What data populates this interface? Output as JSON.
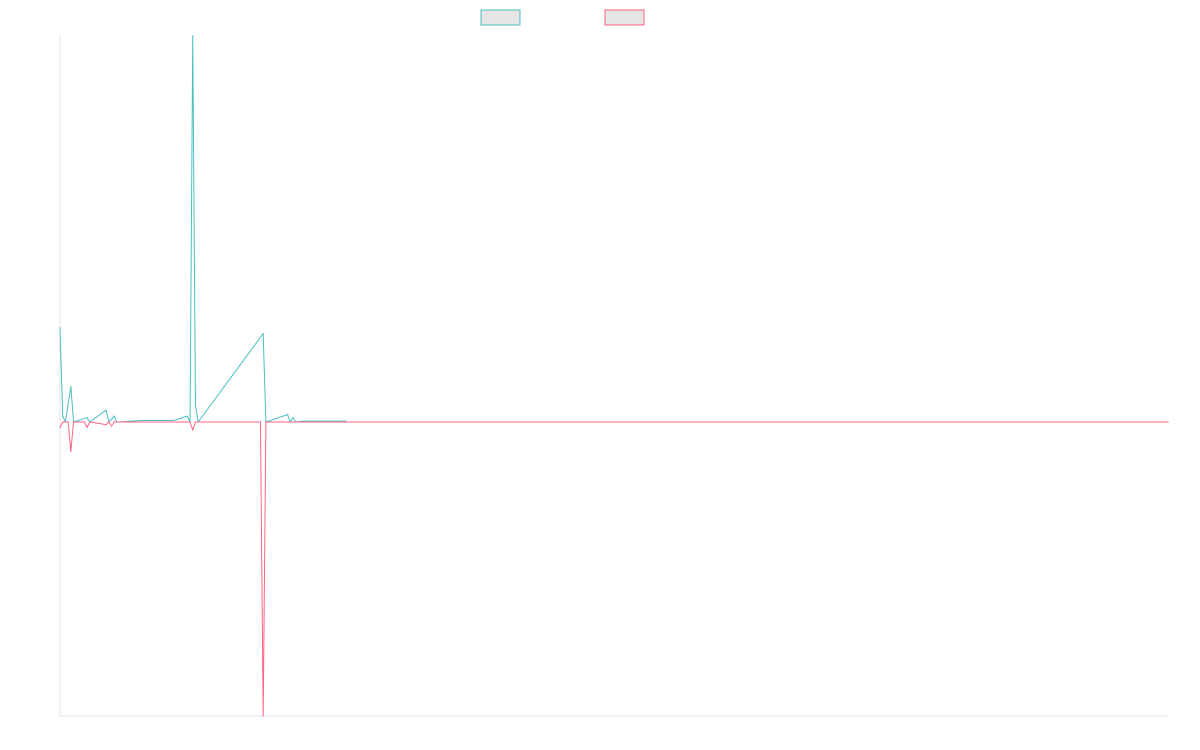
{
  "chart_data": {
    "type": "line",
    "title": "",
    "xlabel": "",
    "ylabel": "",
    "grid": false,
    "legend_position": "top-center",
    "x_count": 410,
    "ylim": [
      -100,
      100
    ],
    "series": [
      {
        "color": "#4bc0c0",
        "fill": "#e6e6e6",
        "points": [
          [
            0,
            32
          ],
          [
            1,
            2
          ],
          [
            2,
            0
          ],
          [
            4,
            12
          ],
          [
            5,
            0
          ],
          [
            10,
            1.5
          ],
          [
            11,
            0
          ],
          [
            17,
            4
          ],
          [
            18,
            0
          ],
          [
            20,
            2
          ],
          [
            21,
            0
          ],
          [
            30,
            0.5
          ],
          [
            35,
            0.5
          ],
          [
            42,
            0.5
          ],
          [
            47,
            2
          ],
          [
            48,
            0
          ],
          [
            49,
            131
          ],
          [
            50,
            6
          ],
          [
            51,
            0
          ],
          [
            75,
            30
          ],
          [
            76,
            0
          ],
          [
            84,
            2.5
          ],
          [
            85,
            0
          ],
          [
            86,
            1.5
          ],
          [
            87,
            0
          ],
          [
            90,
            0.3
          ],
          [
            105,
            0.3
          ],
          [
            106,
            0
          ],
          [
            409,
            0
          ]
        ]
      },
      {
        "color": "#ff6384",
        "fill": "#e6e6e6",
        "points": [
          [
            0,
            -2
          ],
          [
            1,
            0
          ],
          [
            3,
            0
          ],
          [
            4,
            -11
          ],
          [
            5,
            0
          ],
          [
            9,
            0
          ],
          [
            10,
            -2
          ],
          [
            11,
            0
          ],
          [
            17,
            -1
          ],
          [
            18,
            0
          ],
          [
            19,
            -1.5
          ],
          [
            20,
            0
          ],
          [
            48,
            0
          ],
          [
            49,
            -3
          ],
          [
            50,
            0
          ],
          [
            74,
            0
          ],
          [
            75,
            -110
          ],
          [
            76,
            0
          ],
          [
            409,
            0
          ]
        ]
      }
    ]
  }
}
